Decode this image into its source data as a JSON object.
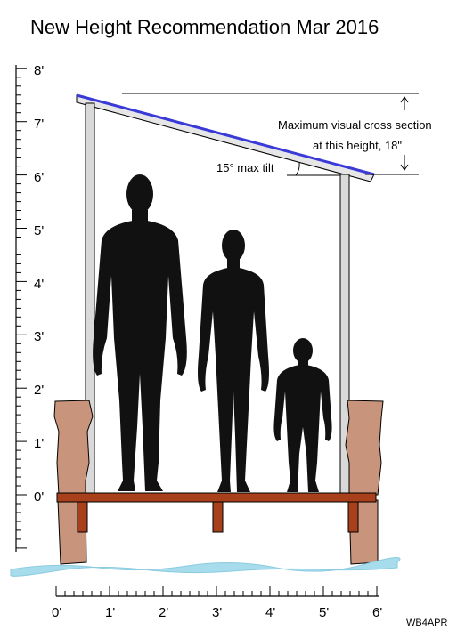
{
  "title": "New Height Recommendation Mar 2016",
  "vertical_ruler": {
    "labels": [
      "0'",
      "1'",
      "2'",
      "3'",
      "4'",
      "5'",
      "6'",
      "7'",
      "8'"
    ],
    "feet": [
      0,
      1,
      2,
      3,
      4,
      5,
      6,
      7,
      8
    ]
  },
  "horizontal_ruler": {
    "labels": [
      "0'",
      "1'",
      "2'",
      "3'",
      "4'",
      "5'",
      "6'"
    ],
    "feet": [
      0,
      1,
      2,
      3,
      4,
      5,
      6
    ]
  },
  "annotations": {
    "cross_section_line1": "Maximum visual cross section",
    "cross_section_line2": "at this height, 18\"",
    "tilt": "15° max tilt"
  },
  "credit": "WB4APR",
  "colors": {
    "roof_blue": "#3a3ad8",
    "roof_fill": "#e6e6e6",
    "post": "#d9d9d9",
    "brick": "#c8947c",
    "wood": "#a8401c",
    "water": "#a6dcec",
    "silhouette": "#111111"
  }
}
